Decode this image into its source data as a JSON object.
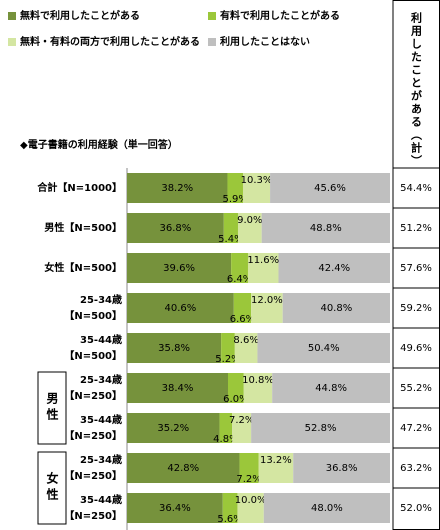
{
  "chart_data": {
    "type": "stacked-bar-horizontal",
    "title": "◆電子書籍の利用経験（単一回答）",
    "categories": [
      [
        "合計【N=1000】"
      ],
      [
        "男性【N=500】"
      ],
      [
        "女性【N=500】"
      ],
      [
        "25-34歳",
        "【N=500】"
      ],
      [
        "35-44歳",
        "【N=500】"
      ],
      [
        "25-34歳",
        "【N=250】"
      ],
      [
        "35-44歳",
        "【N=250】"
      ],
      [
        "25-34歳",
        "【N=250】"
      ],
      [
        "35-44歳",
        "【N=250】"
      ]
    ],
    "groups": [
      {
        "label": "男性",
        "span": [
          5,
          6
        ]
      },
      {
        "label": "女性",
        "span": [
          7,
          8
        ]
      }
    ],
    "xlim": [
      0,
      100
    ],
    "series": [
      {
        "name": "無料で利用したことがある",
        "color": "#76923c",
        "values": [
          38.2,
          36.8,
          39.6,
          40.6,
          35.8,
          38.4,
          35.2,
          42.8,
          36.4
        ],
        "value_labels": [
          "38.2%",
          "36.8%",
          "39.6%",
          "40.6%",
          "35.8%",
          "38.4%",
          "35.2%",
          "42.8%",
          "36.4%"
        ]
      },
      {
        "name": "有料で利用したことがある",
        "color": "#9bc73a",
        "values": [
          5.9,
          5.4,
          6.4,
          6.6,
          5.2,
          6.0,
          4.8,
          7.2,
          5.6
        ],
        "value_labels": [
          "5.9%",
          "5.4%",
          "6.4%",
          "6.6%",
          "5.2%",
          "6.0%",
          "4.8%",
          "7.2%",
          "5.6%"
        ]
      },
      {
        "name": "無料・有料の両方で利用したことがある",
        "color": "#d4e6a2",
        "values": [
          10.3,
          9.0,
          11.6,
          12.0,
          8.6,
          10.8,
          7.2,
          13.2,
          10.0
        ],
        "value_labels": [
          "10.3%",
          "9.0%",
          "11.6%",
          "12.0%",
          "8.6%",
          "10.8%",
          "7.2%",
          "13.2%",
          "10.0%"
        ]
      },
      {
        "name": "利用したことはない",
        "color": "#bfbfbf",
        "values": [
          45.6,
          48.8,
          42.4,
          40.8,
          50.4,
          44.8,
          52.8,
          36.8,
          48.0
        ],
        "value_labels": [
          "45.6%",
          "48.8%",
          "42.4%",
          "40.8%",
          "50.4%",
          "44.8%",
          "52.8%",
          "36.8%",
          "48.0%"
        ]
      }
    ],
    "total": {
      "name": "利用したことがある（計）",
      "values": [
        54.4,
        51.2,
        57.6,
        59.2,
        49.6,
        55.2,
        47.2,
        63.2,
        52.0
      ],
      "value_labels": [
        "54.4%",
        "51.2%",
        "57.6%",
        "59.2%",
        "49.6%",
        "55.2%",
        "47.2%",
        "63.2%",
        "52.0%"
      ]
    }
  }
}
